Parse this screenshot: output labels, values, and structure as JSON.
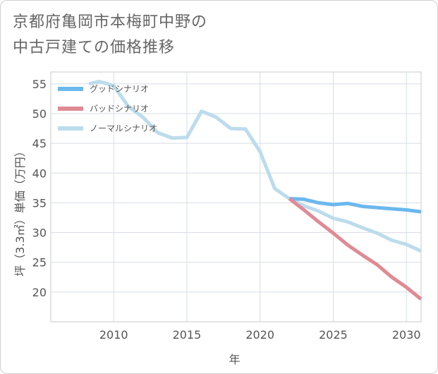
{
  "page": {
    "title": "京都府亀岡市本梅町中野の\n中古戸建ての価格推移"
  },
  "chart_data": {
    "type": "line",
    "xlabel": "年",
    "ylabel": "坪（3.3㎡）単価（万円）",
    "xlim": [
      2005.7,
      2031
    ],
    "ylim": [
      15,
      57
    ],
    "x_ticks": [
      2010,
      2015,
      2020,
      2025,
      2030
    ],
    "y_ticks": [
      20,
      25,
      30,
      35,
      40,
      45,
      50,
      55
    ],
    "grid": true,
    "legend_position": "top-left",
    "series": [
      {
        "name": "グッドシナリオ",
        "color": "#6bb8ee",
        "width": 5,
        "x": [
          2022,
          2023,
          2024,
          2025,
          2026,
          2027,
          2028,
          2029,
          2030,
          2031
        ],
        "y": [
          35.7,
          35.6,
          35.0,
          34.7,
          34.9,
          34.4,
          34.2,
          34.0,
          33.8,
          33.5
        ]
      },
      {
        "name": "バッドシナリオ",
        "color": "#e08a94",
        "width": 5,
        "x": [
          2022,
          2023,
          2024,
          2025,
          2026,
          2027,
          2028,
          2029,
          2030,
          2031
        ],
        "y": [
          35.7,
          33.8,
          31.8,
          29.9,
          27.9,
          26.2,
          24.6,
          22.5,
          20.8,
          18.8
        ]
      },
      {
        "name": "ノーマルシナリオ",
        "color": "#bcdcec",
        "width": 5,
        "x": [
          2008.3,
          2009,
          2010,
          2011,
          2012,
          2013,
          2014,
          2015,
          2016,
          2017,
          2018,
          2019,
          2020,
          2021,
          2022,
          2023,
          2024,
          2025,
          2026,
          2027,
          2028,
          2029,
          2030,
          2031
        ],
        "y": [
          55.0,
          55.4,
          54.7,
          51.2,
          49.4,
          46.8,
          45.9,
          46.0,
          50.4,
          49.4,
          47.5,
          47.4,
          43.6,
          37.4,
          35.7,
          34.5,
          33.6,
          32.4,
          31.8,
          30.8,
          29.9,
          28.7,
          28.0,
          26.9
        ]
      }
    ]
  }
}
